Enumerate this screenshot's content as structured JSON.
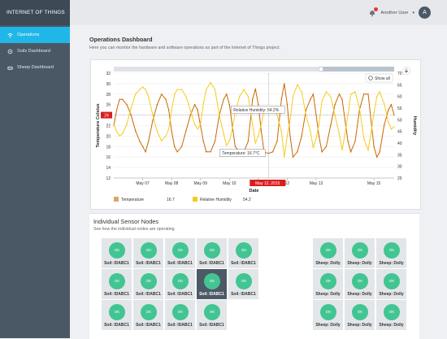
{
  "sidebar": {
    "brand": "INTERNET OF THINGS",
    "items": [
      {
        "label": "Operations",
        "icon": "wifi-icon",
        "active": true
      },
      {
        "label": "Soils Dashboard",
        "icon": "gear-icon",
        "active": false
      },
      {
        "label": "Sheep Dashboard",
        "icon": "sheep-icon",
        "active": false
      }
    ]
  },
  "header": {
    "username": "Another User",
    "avatar_letter": "A"
  },
  "page": {
    "title": "Operations Dashboard",
    "subtitle": "Here you can monitor the hardware and software operations as part of the Internet of Things project."
  },
  "chart_data": {
    "type": "line",
    "series": [
      {
        "name": "Temperature",
        "color": "#cc6600",
        "legend_value": "16.7",
        "x": [
          6.0,
          6.1,
          6.2,
          6.3,
          6.45,
          6.6,
          6.75,
          6.9,
          7.0,
          7.1,
          7.2,
          7.35,
          7.5,
          7.65,
          7.8,
          7.9,
          8.0,
          8.1,
          8.2,
          8.35,
          8.5,
          8.65,
          8.8,
          8.9,
          9.0,
          9.1,
          9.2,
          9.35,
          9.5,
          9.65,
          9.8,
          9.9,
          10.0,
          10.1,
          10.2,
          10.35,
          10.5,
          10.65,
          10.8,
          10.9,
          11.0,
          11.1,
          11.2,
          11.35,
          11.5,
          11.65,
          11.8,
          11.9,
          12.0,
          12.1,
          12.2,
          12.35,
          12.5,
          12.65,
          12.8,
          12.9,
          13.0,
          13.1,
          13.2,
          13.35,
          13.5,
          13.65,
          13.8,
          13.9,
          14.0,
          14.1,
          14.2,
          14.35,
          14.5,
          14.65,
          14.8,
          14.9,
          15.0,
          15.1,
          15.2,
          15.35,
          15.5,
          15.6,
          15.7
        ],
        "values": [
          22,
          25,
          27,
          27,
          26,
          24,
          21,
          19,
          18,
          17,
          19,
          23,
          26,
          28,
          27,
          25,
          21,
          18,
          17,
          18,
          21,
          24,
          26,
          25,
          22,
          19,
          17,
          17,
          19,
          24,
          27,
          28,
          26,
          22,
          18,
          17,
          17,
          19,
          27,
          29,
          26,
          21,
          17,
          16.7,
          17,
          19,
          27,
          30,
          26,
          20,
          16,
          17,
          20,
          25,
          27,
          28,
          24,
          20,
          17,
          18,
          22,
          26,
          28,
          27,
          23,
          19,
          17,
          19,
          25,
          28,
          28,
          23,
          18,
          16,
          17,
          22,
          25,
          26,
          24
        ]
      },
      {
        "name": "Relative Humidity",
        "color": "#f5cc1f",
        "legend_value": "54.2",
        "x": [
          6.0,
          6.1,
          6.2,
          6.3,
          6.45,
          6.6,
          6.75,
          6.9,
          7.0,
          7.1,
          7.2,
          7.35,
          7.5,
          7.65,
          7.8,
          7.9,
          8.0,
          8.1,
          8.2,
          8.35,
          8.5,
          8.65,
          8.8,
          8.9,
          9.0,
          9.1,
          9.2,
          9.35,
          9.5,
          9.65,
          9.8,
          9.9,
          10.0,
          10.1,
          10.2,
          10.35,
          10.5,
          10.65,
          10.8,
          10.9,
          11.0,
          11.1,
          11.2,
          11.35,
          11.5,
          11.65,
          11.8,
          11.9,
          12.0,
          12.1,
          12.2,
          12.35,
          12.5,
          12.65,
          12.8,
          12.9,
          13.0,
          13.1,
          13.2,
          13.35,
          13.5,
          13.65,
          13.8,
          13.9,
          14.0,
          14.1,
          14.2,
          14.35,
          14.5,
          14.65,
          14.8,
          14.9,
          15.0,
          15.1,
          15.2,
          15.35,
          15.5,
          15.6,
          15.7
        ],
        "values": [
          48,
          45,
          43,
          44,
          48,
          55,
          61,
          63,
          64,
          63,
          60,
          52,
          45,
          41,
          43,
          46,
          54,
          61,
          63,
          63,
          60,
          54,
          48,
          46,
          48,
          57,
          63,
          66,
          63,
          52,
          44,
          39,
          41,
          46,
          53,
          60,
          63,
          60,
          48,
          40,
          43,
          48,
          54,
          54.2,
          55,
          52,
          45,
          34,
          43,
          50,
          60,
          65,
          62,
          52,
          45,
          38,
          42,
          48,
          58,
          62,
          60,
          52,
          44,
          37,
          44,
          52,
          61,
          62,
          55,
          42,
          37,
          44,
          53,
          60,
          62,
          57,
          49,
          46,
          47
        ]
      }
    ],
    "xlabel": "Date",
    "ylabel_left": "Temperature Celsius",
    "ylabel_right": "Humidity",
    "x_ticks": [
      "May 07",
      "May 08",
      "May 09",
      "May 10",
      "May 11",
      "12",
      "May 13",
      "May 15"
    ],
    "x_tick_values": [
      7,
      8,
      9,
      10,
      11,
      12,
      13,
      15
    ],
    "highlight_x_label": "May 12, 2015",
    "y_left_ticks": [
      12,
      14,
      16,
      18,
      20,
      22,
      24,
      26,
      28,
      30,
      32
    ],
    "y_right_ticks": [
      25,
      30,
      35,
      40,
      45,
      50,
      55,
      60,
      65,
      70
    ],
    "y_left_range": [
      12,
      32
    ],
    "y_right_range": [
      25,
      70
    ],
    "x_range": [
      6,
      15.7
    ],
    "crosshair_left_label": "24",
    "tooltips": [
      "Relative Humidity: 54.2%",
      "Temperature: 16.7°C"
    ],
    "grid": true,
    "show_all_label": "Show all",
    "legend_position": "bottom-left"
  },
  "sensors": {
    "title": "Individual Sensor Nodes",
    "subtitle": "See how the individual nodes are operating",
    "status_label": "OK",
    "soil_label": "Soil: IDABC1",
    "sheep_label": "Sheep: Dolly",
    "soil_rows": [
      5,
      5,
      4
    ],
    "sheep_rows": [
      3,
      3,
      3
    ]
  }
}
